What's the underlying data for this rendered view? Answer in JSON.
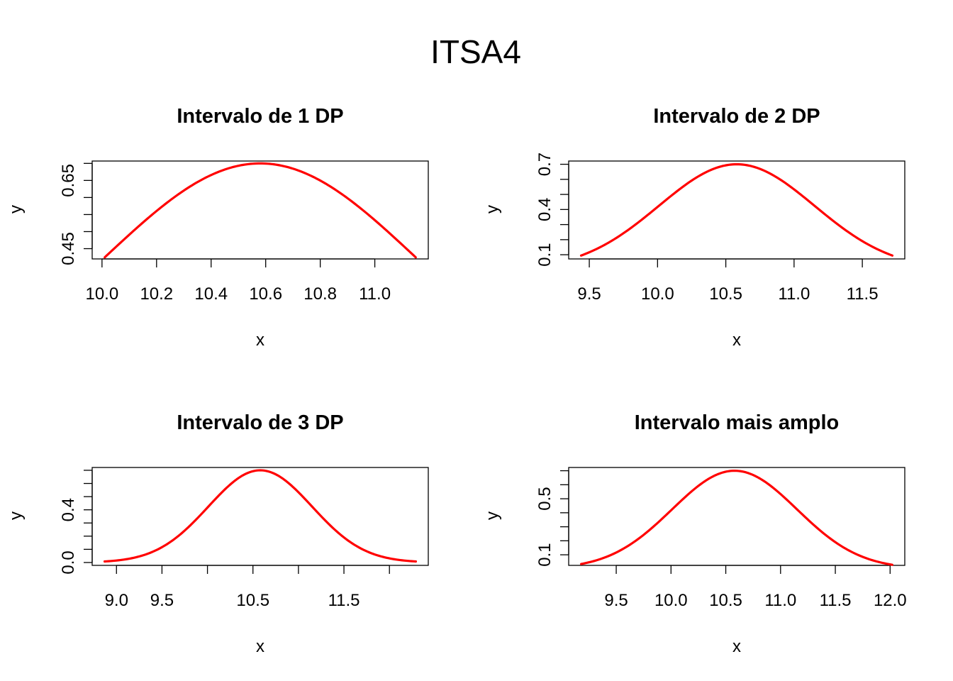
{
  "figure_title": "ITSA4",
  "chart_data": [
    {
      "type": "line",
      "title": "Intervalo de 1 DP",
      "xlabel": "x",
      "ylabel": "y",
      "mean": 10.58,
      "sd": 0.57,
      "series": [
        {
          "x_range": [
            10.01,
            11.15
          ],
          "color": "#ff0000"
        }
      ],
      "x_ticks": [
        10.0,
        10.2,
        10.4,
        10.6,
        10.8,
        11.0
      ],
      "x_tick_labels": [
        "10.0",
        "10.2",
        "10.4",
        "10.6",
        "10.8",
        "11.0"
      ],
      "y_ticks": [
        0.45,
        0.5,
        0.55,
        0.6,
        0.65,
        0.7
      ],
      "y_tick_labels": [
        "0.45",
        "",
        "",
        "",
        "0.65",
        ""
      ],
      "xlim": [
        9.964,
        11.196
      ],
      "ylim": [
        0.4199,
        0.7069
      ]
    },
    {
      "type": "line",
      "title": "Intervalo de 2 DP",
      "xlabel": "x",
      "ylabel": "y",
      "mean": 10.58,
      "sd": 0.57,
      "series": [
        {
          "x_range": [
            9.44,
            11.72
          ],
          "color": "#ff0000"
        }
      ],
      "x_ticks": [
        9.5,
        10.0,
        10.5,
        11.0,
        11.5
      ],
      "x_tick_labels": [
        "9.5",
        "10.0",
        "10.5",
        "11.0",
        "11.5"
      ],
      "y_ticks": [
        0.1,
        0.2,
        0.3,
        0.4,
        0.5,
        0.6,
        0.7
      ],
      "y_tick_labels": [
        "0.1",
        "",
        "",
        "0.4",
        "",
        "",
        "0.7"
      ],
      "xlim": [
        9.349,
        11.811
      ],
      "ylim": [
        0.0722,
        0.7215
      ]
    },
    {
      "type": "line",
      "title": "Intervalo de 3 DP",
      "xlabel": "x",
      "ylabel": "y",
      "mean": 10.58,
      "sd": 0.57,
      "series": [
        {
          "x_range": [
            8.87,
            12.29
          ],
          "color": "#ff0000"
        }
      ],
      "x_ticks": [
        9.0,
        9.5,
        10.0,
        10.5,
        11.0,
        11.5,
        12.0
      ],
      "x_tick_labels": [
        "9.0",
        "9.5",
        "",
        "10.5",
        "",
        "11.5",
        ""
      ],
      "y_ticks": [
        0.0,
        0.1,
        0.2,
        0.3,
        0.4,
        0.5,
        0.6,
        0.7
      ],
      "y_tick_labels": [
        "0.0",
        "",
        "",
        "",
        "0.4",
        "",
        "",
        ""
      ],
      "xlim": [
        8.733,
        12.427
      ],
      "ylim": [
        -0.0218,
        0.7213
      ]
    },
    {
      "type": "line",
      "title": "Intervalo mais amplo",
      "xlabel": "x",
      "ylabel": "y",
      "mean": 10.58,
      "sd": 0.57,
      "series": [
        {
          "x_range": [
            9.18,
            12.02
          ],
          "color": "#ff0000"
        }
      ],
      "x_ticks": [
        9.5,
        10.0,
        10.5,
        11.0,
        11.5,
        12.0
      ],
      "x_tick_labels": [
        "9.5",
        "10.0",
        "10.5",
        "11.0",
        "11.5",
        "12.0"
      ],
      "y_ticks": [
        0.1,
        0.2,
        0.3,
        0.4,
        0.5,
        0.6,
        0.7
      ],
      "y_tick_labels": [
        "0.1",
        "",
        "",
        "",
        "0.5",
        "",
        ""
      ],
      "xlim": [
        9.066,
        12.134
      ],
      "ylim": [
        0.0245,
        0.7232
      ]
    }
  ]
}
